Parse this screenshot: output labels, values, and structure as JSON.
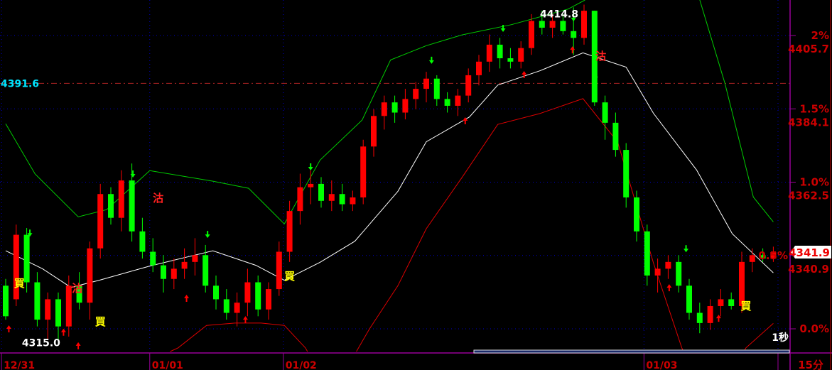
{
  "chart_data": {
    "type": "candlestick",
    "title": "",
    "base_price": 4319.3,
    "y_range": [
      4313.5,
      4416.5
    ],
    "grid": true,
    "colors": {
      "up": "#ff0000",
      "down": "#00ff00",
      "ma": "#ffffff",
      "upper_band": "#00cc00",
      "lower_band": "#dd0000",
      "axis": "#990099",
      "axis_text": "#cc0000",
      "grid": "#0000cc",
      "buy": "#ffff00",
      "sell": "#ff2020",
      "ref_line": "#00e5ff"
    },
    "y_ticks": [
      {
        "pct": "2%",
        "price": "4405.7",
        "value": 4405.7
      },
      {
        "pct": "1.5%",
        "price": "4384.1",
        "value": 4384.1
      },
      {
        "pct": "1.0%",
        "price": "4362.5",
        "value": 4362.5
      },
      {
        "pct": "0.5%",
        "price": "4340.9",
        "value": 4340.9
      },
      {
        "pct": "0.0%",
        "price": "",
        "value": 4319.3
      }
    ],
    "x_ticks": [
      {
        "label": "12/31",
        "index": -0.4
      },
      {
        "label": "01/01",
        "index": 13.7
      },
      {
        "label": "01/02",
        "index": 26.4
      },
      {
        "label": "01/03",
        "index": 60.7
      }
    ],
    "last_price": "4341.9",
    "last_value": 4341.9,
    "period_label": "15分",
    "refresh_label": "1秒",
    "high_label": "4414.8",
    "high": {
      "index": 55,
      "value": 4414.8
    },
    "low_label": "4315.0",
    "low": {
      "index": 5.4,
      "value": 4315.0
    },
    "ref_line": {
      "label": "4391.6",
      "value": 4391.6
    },
    "candles": [
      [
        4332,
        4334,
        4322,
        4323
      ],
      [
        4328,
        4350,
        4326,
        4347
      ],
      [
        4347,
        4349,
        4330,
        4333
      ],
      [
        4333,
        4336,
        4320,
        4322
      ],
      [
        4322,
        4330,
        4316,
        4328
      ],
      [
        4328,
        4330,
        4315,
        4320
      ],
      [
        4320,
        4335,
        4317,
        4332
      ],
      [
        4332,
        4336,
        4325,
        4327
      ],
      [
        4327,
        4345,
        4322,
        4343
      ],
      [
        4343,
        4362,
        4340,
        4359
      ],
      [
        4359,
        4361,
        4350,
        4352
      ],
      [
        4352,
        4366,
        4348,
        4363
      ],
      [
        4363,
        4368,
        4345,
        4348
      ],
      [
        4348,
        4352,
        4340,
        4342
      ],
      [
        4342,
        4346,
        4336,
        4338
      ],
      [
        4338,
        4341,
        4330,
        4334
      ],
      [
        4334,
        4340,
        4331,
        4337
      ],
      [
        4337,
        4343,
        4334,
        4339
      ],
      [
        4339,
        4346,
        4335,
        4341
      ],
      [
        4341,
        4344,
        4330,
        4332
      ],
      [
        4332,
        4335,
        4325,
        4328
      ],
      [
        4328,
        4331,
        4322,
        4324
      ],
      [
        4324,
        4330,
        4320,
        4327
      ],
      [
        4327,
        4337,
        4323,
        4333
      ],
      [
        4333,
        4335,
        4323,
        4325
      ],
      [
        4325,
        4333,
        4322,
        4331
      ],
      [
        4331,
        4345,
        4329,
        4342
      ],
      [
        4342,
        4357,
        4339,
        4354
      ],
      [
        4354,
        4365,
        4350,
        4361
      ],
      [
        4361,
        4366,
        4356,
        4362
      ],
      [
        4362,
        4364,
        4355,
        4357
      ],
      [
        4357,
        4363,
        4354,
        4359
      ],
      [
        4359,
        4362,
        4354,
        4356
      ],
      [
        4356,
        4360,
        4354,
        4358
      ],
      [
        4358,
        4375,
        4356,
        4373
      ],
      [
        4373,
        4384,
        4370,
        4382
      ],
      [
        4382,
        4388,
        4378,
        4386
      ],
      [
        4386,
        4388,
        4380,
        4383
      ],
      [
        4383,
        4390,
        4381,
        4387
      ],
      [
        4387,
        4392,
        4384,
        4390
      ],
      [
        4390,
        4395,
        4386,
        4393
      ],
      [
        4393,
        4394,
        4385,
        4387
      ],
      [
        4387,
        4389,
        4383,
        4385
      ],
      [
        4385,
        4390,
        4382,
        4388
      ],
      [
        4388,
        4396,
        4386,
        4394
      ],
      [
        4394,
        4400,
        4391,
        4398
      ],
      [
        4398,
        4406,
        4395,
        4403
      ],
      [
        4403,
        4405,
        4396,
        4399
      ],
      [
        4399,
        4402,
        4396,
        4398
      ],
      [
        4398,
        4404,
        4396,
        4402
      ],
      [
        4402,
        4412,
        4400,
        4410
      ],
      [
        4410,
        4413,
        4406,
        4408
      ],
      [
        4408,
        4412,
        4405,
        4410
      ],
      [
        4410,
        4412,
        4406,
        4407
      ],
      [
        4407,
        4414,
        4400,
        4405
      ],
      [
        4405,
        4414.8,
        4403,
        4413
      ],
      [
        4413,
        4413,
        4385,
        4386
      ],
      [
        4386,
        4388,
        4375,
        4380
      ],
      [
        4380,
        4383,
        4370,
        4372
      ],
      [
        4372,
        4374,
        4355,
        4358
      ],
      [
        4358,
        4360,
        4345,
        4348
      ],
      [
        4348,
        4350,
        4332,
        4335
      ],
      [
        4335,
        4340,
        4330,
        4337
      ],
      [
        4337,
        4341,
        4334,
        4339
      ],
      [
        4339,
        4341,
        4330,
        4332
      ],
      [
        4332,
        4334,
        4322,
        4324
      ],
      [
        4324,
        4327,
        4318,
        4321
      ],
      [
        4321,
        4328,
        4319,
        4326
      ],
      [
        4326,
        4331,
        4323,
        4328
      ],
      [
        4328,
        4330,
        4325,
        4326
      ],
      [
        4326,
        4342,
        4324,
        4339
      ],
      [
        4339,
        4343,
        4336,
        4341
      ],
      [
        4341,
        4343,
        4339,
        4340
      ],
      [
        4340,
        4343.5,
        4339,
        4341.9
      ]
    ],
    "ma_line": [
      [
        0,
        4342.3
      ],
      [
        3.5,
        4337.0
      ],
      [
        6.2,
        4331.5
      ],
      [
        8.9,
        4333.6
      ],
      [
        13.7,
        4337.8
      ],
      [
        19.7,
        4342.3
      ],
      [
        23.8,
        4338.0
      ],
      [
        26.5,
        4333.6
      ],
      [
        29.9,
        4338.9
      ],
      [
        33.2,
        4345.1
      ],
      [
        37.3,
        4359.8
      ],
      [
        40,
        4374.4
      ],
      [
        44.1,
        4381.7
      ],
      [
        46.8,
        4391.1
      ],
      [
        50.8,
        4395.3
      ],
      [
        54.9,
        4400.6
      ],
      [
        59,
        4396.4
      ],
      [
        61.6,
        4382.8
      ],
      [
        65.7,
        4366.1
      ],
      [
        69.1,
        4347.3
      ],
      [
        73,
        4335.8
      ]
    ],
    "upper_band": [
      [
        0,
        4379.7
      ],
      [
        2.8,
        4364.9
      ],
      [
        6.9,
        4352.3
      ],
      [
        9.6,
        4354.4
      ],
      [
        13.7,
        4365.9
      ],
      [
        19.7,
        4362.8
      ],
      [
        23.1,
        4360.7
      ],
      [
        26.5,
        4350.2
      ],
      [
        29.9,
        4369.0
      ],
      [
        33.9,
        4380.8
      ],
      [
        36.6,
        4398.5
      ],
      [
        40,
        4402.7
      ],
      [
        43.4,
        4405.9
      ],
      [
        48.1,
        4408.9
      ],
      [
        53.5,
        4413.5
      ],
      [
        56.2,
        4418
      ],
      [
        60.3,
        4434
      ],
      [
        66,
        4416.2
      ],
      [
        68.4,
        4391.6
      ],
      [
        71.1,
        4358.1
      ],
      [
        73,
        4350.8
      ]
    ],
    "lower_band": [
      [
        0,
        4290
      ],
      [
        16.4,
        4313.7
      ],
      [
        19.1,
        4320.3
      ],
      [
        21.8,
        4321.0
      ],
      [
        24.3,
        4321.0
      ],
      [
        26.5,
        4320.3
      ],
      [
        28.5,
        4313.7
      ],
      [
        31,
        4300
      ],
      [
        34.6,
        4319.3
      ],
      [
        37.3,
        4332.0
      ],
      [
        40,
        4348.8
      ],
      [
        43.4,
        4363.9
      ],
      [
        46.8,
        4379.5
      ],
      [
        50.8,
        4382.7
      ],
      [
        54.9,
        4387.1
      ],
      [
        58.2,
        4374.3
      ],
      [
        61.6,
        4338.7
      ],
      [
        64.3,
        4313.7
      ],
      [
        67,
        4295
      ],
      [
        70.4,
        4313.7
      ],
      [
        73,
        4320.9
      ]
    ],
    "signals": [
      {
        "index": 1.3,
        "value": 4332.9,
        "label": "買",
        "type": "buy"
      },
      {
        "index": 6.8,
        "value": 4331.4,
        "label": "沽",
        "type": "sell"
      },
      {
        "index": 9,
        "value": 4321.6,
        "label": "買",
        "type": "buy"
      },
      {
        "index": 14.5,
        "value": 4358,
        "label": "沽",
        "type": "sell"
      },
      {
        "index": 27,
        "value": 4335,
        "label": "買",
        "type": "buy"
      },
      {
        "index": 56.6,
        "value": 4399.8,
        "label": "沽",
        "type": "sell"
      },
      {
        "index": 70.4,
        "value": 4326.2,
        "label": "買",
        "type": "buy"
      }
    ],
    "up_arrows": [
      [
        0.3,
        4319.3
      ],
      [
        5.5,
        4318.3
      ],
      [
        6.9,
        4314.3
      ],
      [
        17.2,
        4328.3
      ],
      [
        22.8,
        4322
      ],
      [
        34,
        4360
      ],
      [
        43.7,
        4380.6
      ],
      [
        49.3,
        4394.2
      ],
      [
        53.9,
        4401.5
      ],
      [
        63.1,
        4331.4
      ],
      [
        67.8,
        4322.4
      ]
    ],
    "down_arrows": [
      [
        2.3,
        4347.5
      ],
      [
        12.1,
        4364.9
      ],
      [
        19.2,
        4347.1
      ],
      [
        29,
        4367
      ],
      [
        40.5,
        4398.4
      ],
      [
        47.3,
        4407.8
      ],
      [
        54,
        4410.9
      ],
      [
        56.1,
        4393.6
      ],
      [
        64.7,
        4342.9
      ]
    ]
  }
}
